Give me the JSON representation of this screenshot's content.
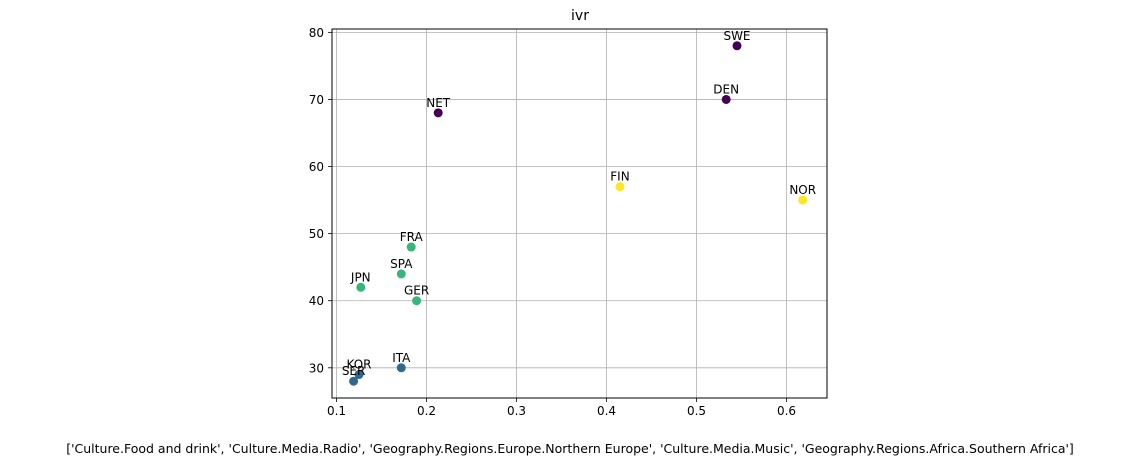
{
  "chart_data": {
    "type": "scatter",
    "title": "ivr",
    "xlabel": "['Culture.Food and drink', 'Culture.Media.Radio', 'Geography.Regions.Europe.Northern Europe', 'Culture.Media.Music', 'Geography.Regions.Africa.Southern Africa']",
    "ylabel": "",
    "xlim": [
      0.095,
      0.645
    ],
    "ylim": [
      25.5,
      80.5
    ],
    "xticks": [
      "0.1",
      "0.2",
      "0.3",
      "0.4",
      "0.5",
      "0.6"
    ],
    "yticks": [
      "30",
      "40",
      "50",
      "60",
      "70",
      "80"
    ],
    "grid": true,
    "legend": "none",
    "points": [
      {
        "label": "SWE",
        "x": 0.545,
        "y": 78,
        "color": "#440154"
      },
      {
        "label": "DEN",
        "x": 0.533,
        "y": 70,
        "color": "#440154"
      },
      {
        "label": "NET",
        "x": 0.213,
        "y": 68,
        "color": "#440154"
      },
      {
        "label": "FIN",
        "x": 0.415,
        "y": 57,
        "color": "#fde725"
      },
      {
        "label": "NOR",
        "x": 0.618,
        "y": 55,
        "color": "#fde725"
      },
      {
        "label": "FRA",
        "x": 0.183,
        "y": 48,
        "color": "#35b779"
      },
      {
        "label": "SPA",
        "x": 0.172,
        "y": 44,
        "color": "#35b779"
      },
      {
        "label": "JPN",
        "x": 0.127,
        "y": 42,
        "color": "#35b779"
      },
      {
        "label": "GER",
        "x": 0.189,
        "y": 40,
        "color": "#35b779"
      },
      {
        "label": "ITA",
        "x": 0.172,
        "y": 30,
        "color": "#31688e"
      },
      {
        "label": "KOR",
        "x": 0.125,
        "y": 29,
        "color": "#31688e"
      },
      {
        "label": "SER",
        "x": 0.119,
        "y": 28,
        "color": "#31688e"
      }
    ]
  }
}
